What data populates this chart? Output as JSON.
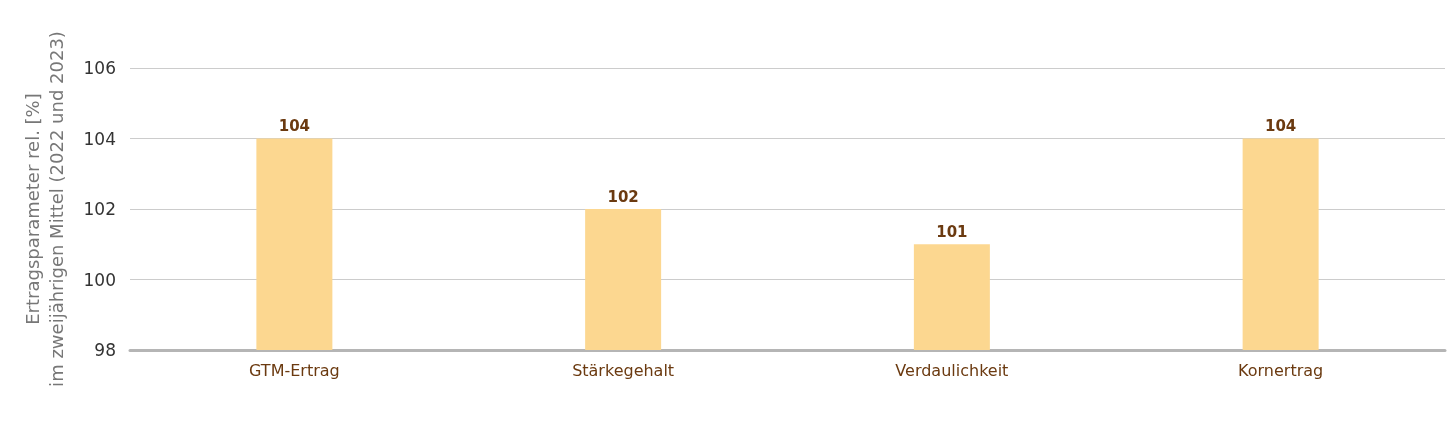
{
  "chart_data": {
    "type": "bar",
    "ylabel": "Ertragsparameter rel. [%]\nim zweijährigen Mittel (2022 und 2023)",
    "categories": [
      "GTM-Ertrag",
      "Stärkegehalt",
      "Verdaulichkeit",
      "Kornertrag"
    ],
    "values": [
      104,
      102,
      101,
      104
    ],
    "color": "#fcd790",
    "ylim": [
      98,
      106
    ],
    "yticks": [
      98,
      100,
      102,
      104,
      106
    ],
    "grid": "y",
    "data_labels": true
  }
}
